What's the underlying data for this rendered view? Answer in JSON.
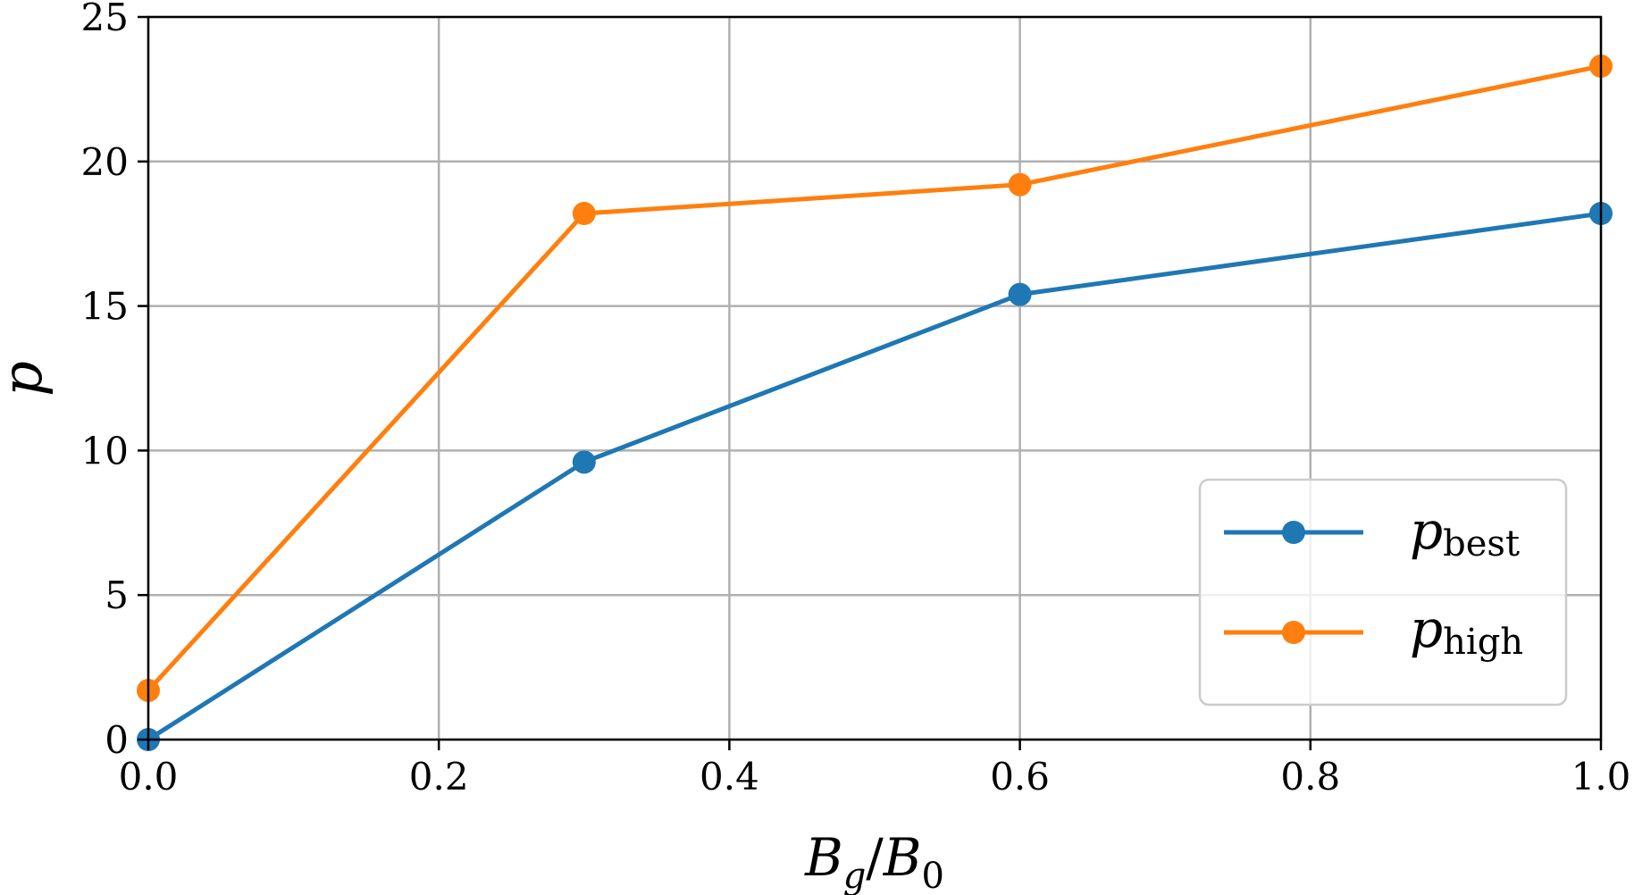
{
  "chart_data": {
    "type": "line",
    "x": [
      0.0,
      0.3,
      0.6,
      1.0
    ],
    "series": [
      {
        "name": "p_best",
        "name_main": "p",
        "name_sub": "best",
        "values": [
          0.0,
          9.6,
          15.4,
          18.2
        ],
        "color": "#1f77b4"
      },
      {
        "name": "p_high",
        "name_main": "p",
        "name_sub": "high",
        "values": [
          1.7,
          18.2,
          19.2,
          23.3
        ],
        "color": "#ff7f0e"
      }
    ],
    "xlim": [
      0.0,
      1.0
    ],
    "ylim": [
      0,
      25
    ],
    "xticks": [
      "0.0",
      "0.2",
      "0.4",
      "0.6",
      "0.8",
      "1.0"
    ],
    "yticks": [
      "0",
      "5",
      "10",
      "15",
      "20",
      "25"
    ],
    "xlabel": {
      "main": "B",
      "sub": "g",
      "sep": "/",
      "main2": "B",
      "sub2": "0"
    },
    "ylabel": "p",
    "grid": true,
    "legend": "lower right",
    "markers": "circle"
  }
}
